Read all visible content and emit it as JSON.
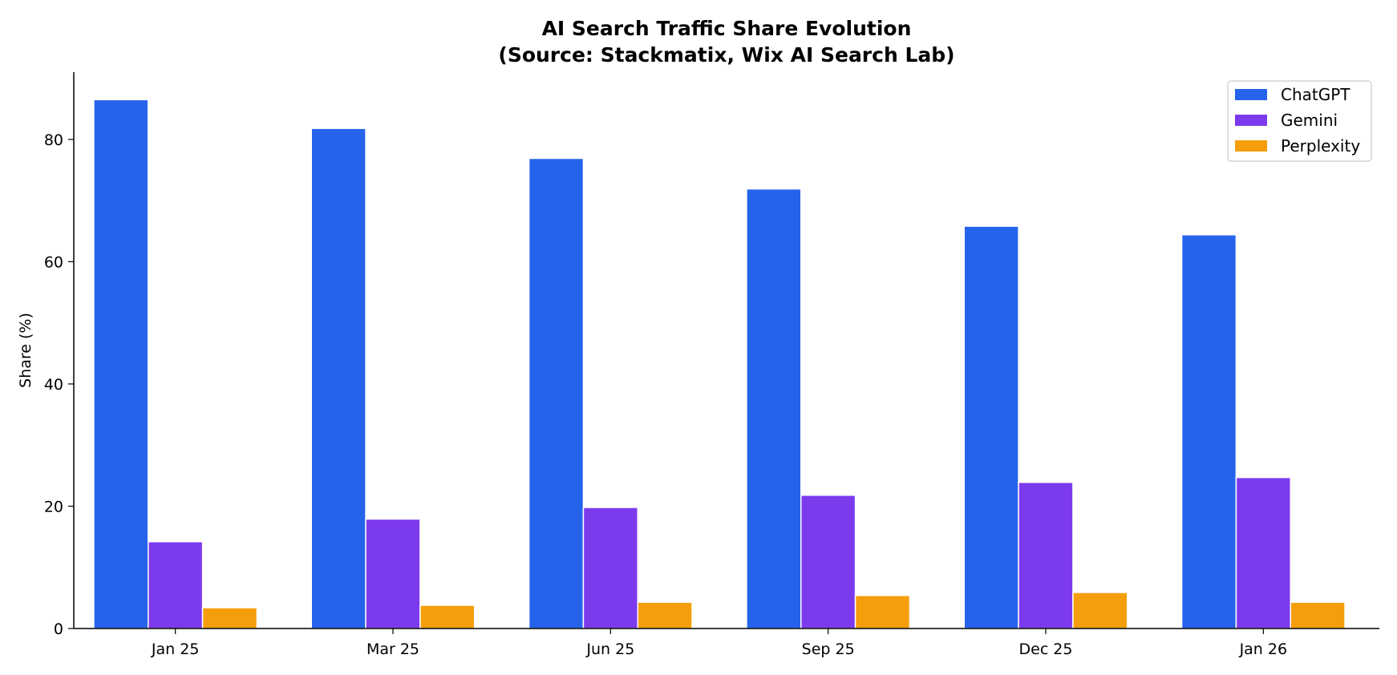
{
  "chart_data": {
    "type": "bar",
    "title": "AI Search Traffic Share Evolution",
    "subtitle": "(Source: Stackmatix, Wix AI Search Lab)",
    "xlabel": "",
    "ylabel": "Share (%)",
    "categories": [
      "Jan 25",
      "Mar 25",
      "Jun 25",
      "Sep 25",
      "Dec 25",
      "Jan 26"
    ],
    "series": [
      {
        "name": "ChatGPT",
        "color": "#2563eb",
        "values": [
          86.5,
          81.8,
          76.9,
          71.9,
          65.8,
          64.4
        ]
      },
      {
        "name": "Gemini",
        "color": "#7c3aed",
        "values": [
          14.2,
          17.9,
          19.8,
          21.8,
          23.9,
          24.7
        ]
      },
      {
        "name": "Perplexity",
        "color": "#f59e0b",
        "values": [
          3.4,
          3.8,
          4.3,
          5.4,
          5.9,
          4.3
        ]
      }
    ],
    "yticks": [
      0,
      20,
      40,
      60,
      80
    ],
    "ylim": [
      0,
      91
    ],
    "grid": false,
    "legend_position": "top-right",
    "spines": [
      "left",
      "bottom"
    ]
  }
}
